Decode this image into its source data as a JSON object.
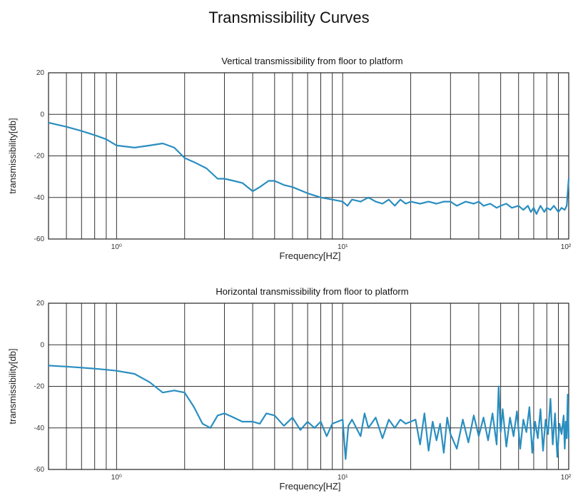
{
  "page": {
    "title": "Transmissibility Curves"
  },
  "chart_data": [
    {
      "type": "line",
      "title": "Vertical transmissibility from floor to platform",
      "xlabel": "Frequency[HZ]",
      "ylabel": "transmissibility[db]",
      "xscale": "log",
      "xlim": [
        0.5,
        100
      ],
      "ylim": [
        -60,
        20
      ],
      "yticks": [
        20,
        0,
        -20,
        -40,
        -60
      ],
      "xticks": [
        {
          "value": 1,
          "label": "10⁰"
        },
        {
          "value": 10,
          "label": "10¹"
        },
        {
          "value": 100,
          "label": "10²"
        }
      ],
      "grid": true,
      "color": "#2a8ec0",
      "series": [
        {
          "x": [
            0.5,
            0.6,
            0.7,
            0.8,
            0.9,
            1.0,
            1.2,
            1.4,
            1.6,
            1.8,
            2.0,
            2.2,
            2.5,
            2.8,
            3.0,
            3.3,
            3.6,
            4.0,
            4.3,
            4.7,
            5.0,
            5.5,
            6.0,
            7.0,
            8.0,
            9.0,
            10.0,
            10.5,
            11.0,
            12.0,
            13.0,
            14.0,
            15.0,
            16.0,
            17.0,
            18.0,
            19.0,
            20.0,
            22.0,
            24.0,
            26.0,
            28.0,
            30.0,
            32.0,
            35.0,
            38.0,
            40.0,
            42.0,
            45.0,
            48.0,
            50.0,
            53.0,
            56.0,
            60.0,
            63.0,
            66.0,
            68.0,
            70.0,
            72.0,
            75.0,
            78.0,
            80.0,
            83.0,
            86.0,
            90.0,
            93.0,
            96.0,
            98.0,
            100.0
          ],
          "y": [
            -4,
            -6,
            -8,
            -10,
            -12,
            -15,
            -16,
            -15,
            -14,
            -16,
            -21,
            -23,
            -26,
            -31,
            -31,
            -32,
            -33,
            -37,
            -35,
            -32,
            -32,
            -34,
            -35,
            -38,
            -40,
            -41,
            -42,
            -44,
            -41,
            -42,
            -40,
            -42,
            -43,
            -41,
            -44,
            -41,
            -43,
            -42,
            -43,
            -42,
            -43,
            -42,
            -42,
            -44,
            -42,
            -43,
            -42,
            -44,
            -43,
            -45,
            -44,
            -43,
            -45,
            -44,
            -46,
            -44,
            -47,
            -45,
            -48,
            -44,
            -47,
            -45,
            -46,
            -44,
            -47,
            -45,
            -46,
            -44,
            -31
          ]
        }
      ]
    },
    {
      "type": "line",
      "title": "Horizontal transmissibility from floor to platform",
      "xlabel": "Frequency[HZ]",
      "ylabel": "transmissibility[db]",
      "xscale": "log",
      "xlim": [
        0.5,
        100
      ],
      "ylim": [
        -60,
        20
      ],
      "yticks": [
        20,
        0,
        -20,
        -40,
        -60
      ],
      "xticks": [
        {
          "value": 1,
          "label": "10⁰"
        },
        {
          "value": 10,
          "label": "10¹"
        },
        {
          "value": 100,
          "label": "10²"
        }
      ],
      "grid": true,
      "color": "#2a8ec0",
      "series": [
        {
          "x": [
            0.5,
            0.6,
            0.7,
            0.8,
            0.9,
            1.0,
            1.2,
            1.4,
            1.6,
            1.8,
            2.0,
            2.2,
            2.4,
            2.6,
            2.8,
            3.0,
            3.3,
            3.6,
            4.0,
            4.3,
            4.6,
            5.0,
            5.5,
            6.0,
            6.5,
            7.0,
            7.5,
            8.0,
            8.5,
            9.0,
            9.5,
            10.0,
            10.3,
            10.6,
            11.0,
            12.0,
            12.5,
            13.0,
            14.0,
            15.0,
            16.0,
            17.0,
            18.0,
            19.0,
            20.0,
            21.0,
            22.0,
            23.0,
            24.0,
            25.0,
            26.0,
            27.0,
            28.0,
            29.0,
            30.0,
            32.0,
            34.0,
            36.0,
            38.0,
            40.0,
            42.0,
            44.0,
            46.0,
            48.0,
            49.0,
            50.0,
            51.0,
            53.0,
            55.0,
            57.0,
            59.0,
            61.0,
            63.0,
            65.0,
            67.0,
            69.0,
            71.0,
            73.0,
            75.0,
            77.0,
            79.0,
            81.0,
            83.0,
            85.0,
            87.0,
            89.0,
            91.0,
            93.0,
            95.0,
            96.0,
            97.0,
            98.0,
            99.0,
            100.0
          ],
          "y": [
            -10,
            -10.5,
            -11,
            -11.5,
            -12,
            -12.5,
            -14,
            -18,
            -23,
            -22,
            -23,
            -30,
            -38,
            -40,
            -34,
            -33,
            -35,
            -37,
            -37,
            -38,
            -33,
            -34,
            -39,
            -35,
            -41,
            -37,
            -40,
            -37,
            -44,
            -38,
            -37,
            -36,
            -55,
            -39,
            -36,
            -44,
            -33,
            -40,
            -35,
            -45,
            -36,
            -40,
            -36,
            -38,
            -37,
            -36,
            -48,
            -33,
            -51,
            -37,
            -46,
            -38,
            -52,
            -35,
            -43,
            -50,
            -36,
            -47,
            -34,
            -44,
            -35,
            -46,
            -33,
            -48,
            -20,
            -42,
            -31,
            -49,
            -35,
            -44,
            -32,
            -50,
            -36,
            -42,
            -30,
            -52,
            -37,
            -45,
            -31,
            -51,
            -36,
            -43,
            -26,
            -48,
            -33,
            -54,
            -38,
            -43,
            -34,
            -50,
            -37,
            -45,
            -24,
            -45
          ]
        }
      ]
    }
  ]
}
